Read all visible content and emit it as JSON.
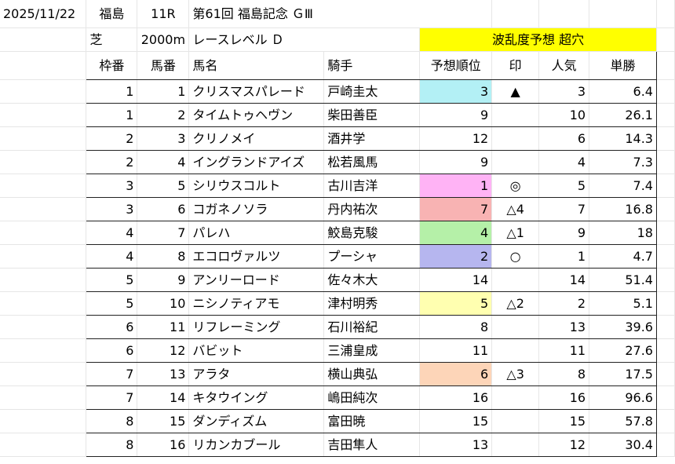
{
  "title_row": {
    "date": "2025/11/22",
    "venue": "福島",
    "race_no": "11R",
    "race_name": "第61回 福島記念 ＧⅢ"
  },
  "info_row": {
    "surface": "芝",
    "distance": "2000m",
    "level": "レースレベル Ｄ",
    "forecast": "波乱度予想 超穴"
  },
  "highlight_colors": {
    "yellow": "#ffff00",
    "cyan": "#b3f0f5",
    "pink": "#ffb3f5",
    "salmon": "#f8b3b3",
    "green": "#b5f0a8",
    "lavender": "#b6b6ef",
    "lightyellow": "#ffffb0",
    "peach": "#fdd5b8"
  },
  "table": {
    "headers": [
      "枠番",
      "馬番",
      "馬名",
      "騎手",
      "予想順位",
      "印",
      "人気",
      "単勝"
    ],
    "rows": [
      {
        "waku": "1",
        "uma": "1",
        "name": "クリスマスパレード",
        "jockey": "戸崎圭太",
        "rank": "3",
        "mark": "▲",
        "pop": "3",
        "odds": "6.4",
        "color": "cyan"
      },
      {
        "waku": "1",
        "uma": "2",
        "name": "タイムトゥヘヴン",
        "jockey": "柴田善臣",
        "rank": "9",
        "mark": "",
        "pop": "10",
        "odds": "26.1",
        "color": ""
      },
      {
        "waku": "2",
        "uma": "3",
        "name": "クリノメイ",
        "jockey": "酒井学",
        "rank": "12",
        "mark": "",
        "pop": "6",
        "odds": "14.3",
        "color": ""
      },
      {
        "waku": "2",
        "uma": "4",
        "name": "イングランドアイズ",
        "jockey": "松若風馬",
        "rank": "9",
        "mark": "",
        "pop": "4",
        "odds": "7.3",
        "color": ""
      },
      {
        "waku": "3",
        "uma": "5",
        "name": "シリウスコルト",
        "jockey": "古川吉洋",
        "rank": "1",
        "mark": "◎",
        "pop": "5",
        "odds": "7.4",
        "color": "pink"
      },
      {
        "waku": "3",
        "uma": "6",
        "name": "コガネノソラ",
        "jockey": "丹内祐次",
        "rank": "7",
        "mark": "△4",
        "pop": "7",
        "odds": "16.8",
        "color": "salmon"
      },
      {
        "waku": "4",
        "uma": "7",
        "name": "パレハ",
        "jockey": "鮫島克駿",
        "rank": "4",
        "mark": "△1",
        "pop": "9",
        "odds": "18",
        "color": "green"
      },
      {
        "waku": "4",
        "uma": "8",
        "name": "エコロヴァルツ",
        "jockey": "プーシャ",
        "rank": "2",
        "mark": "○",
        "pop": "1",
        "odds": "4.7",
        "color": "lavender"
      },
      {
        "waku": "5",
        "uma": "9",
        "name": "アンリーロード",
        "jockey": "佐々木大",
        "rank": "14",
        "mark": "",
        "pop": "14",
        "odds": "51.4",
        "color": ""
      },
      {
        "waku": "5",
        "uma": "10",
        "name": "ニシノティアモ",
        "jockey": "津村明秀",
        "rank": "5",
        "mark": "△2",
        "pop": "2",
        "odds": "5.1",
        "color": "lightyellow"
      },
      {
        "waku": "6",
        "uma": "11",
        "name": "リフレーミング",
        "jockey": "石川裕紀",
        "rank": "8",
        "mark": "",
        "pop": "13",
        "odds": "39.6",
        "color": ""
      },
      {
        "waku": "6",
        "uma": "12",
        "name": "バビット",
        "jockey": "三浦皇成",
        "rank": "11",
        "mark": "",
        "pop": "11",
        "odds": "27.6",
        "color": ""
      },
      {
        "waku": "7",
        "uma": "13",
        "name": "アラタ",
        "jockey": "横山典弘",
        "rank": "6",
        "mark": "△3",
        "pop": "8",
        "odds": "17.5",
        "color": "peach"
      },
      {
        "waku": "7",
        "uma": "14",
        "name": "キタウイング",
        "jockey": "嶋田純次",
        "rank": "16",
        "mark": "",
        "pop": "16",
        "odds": "96.6",
        "color": ""
      },
      {
        "waku": "8",
        "uma": "15",
        "name": "ダンディズム",
        "jockey": "富田暁",
        "rank": "15",
        "mark": "",
        "pop": "15",
        "odds": "57.8",
        "color": ""
      },
      {
        "waku": "8",
        "uma": "16",
        "name": "リカンカブール",
        "jockey": "吉田隼人",
        "rank": "13",
        "mark": "",
        "pop": "12",
        "odds": "30.4",
        "color": ""
      }
    ]
  }
}
